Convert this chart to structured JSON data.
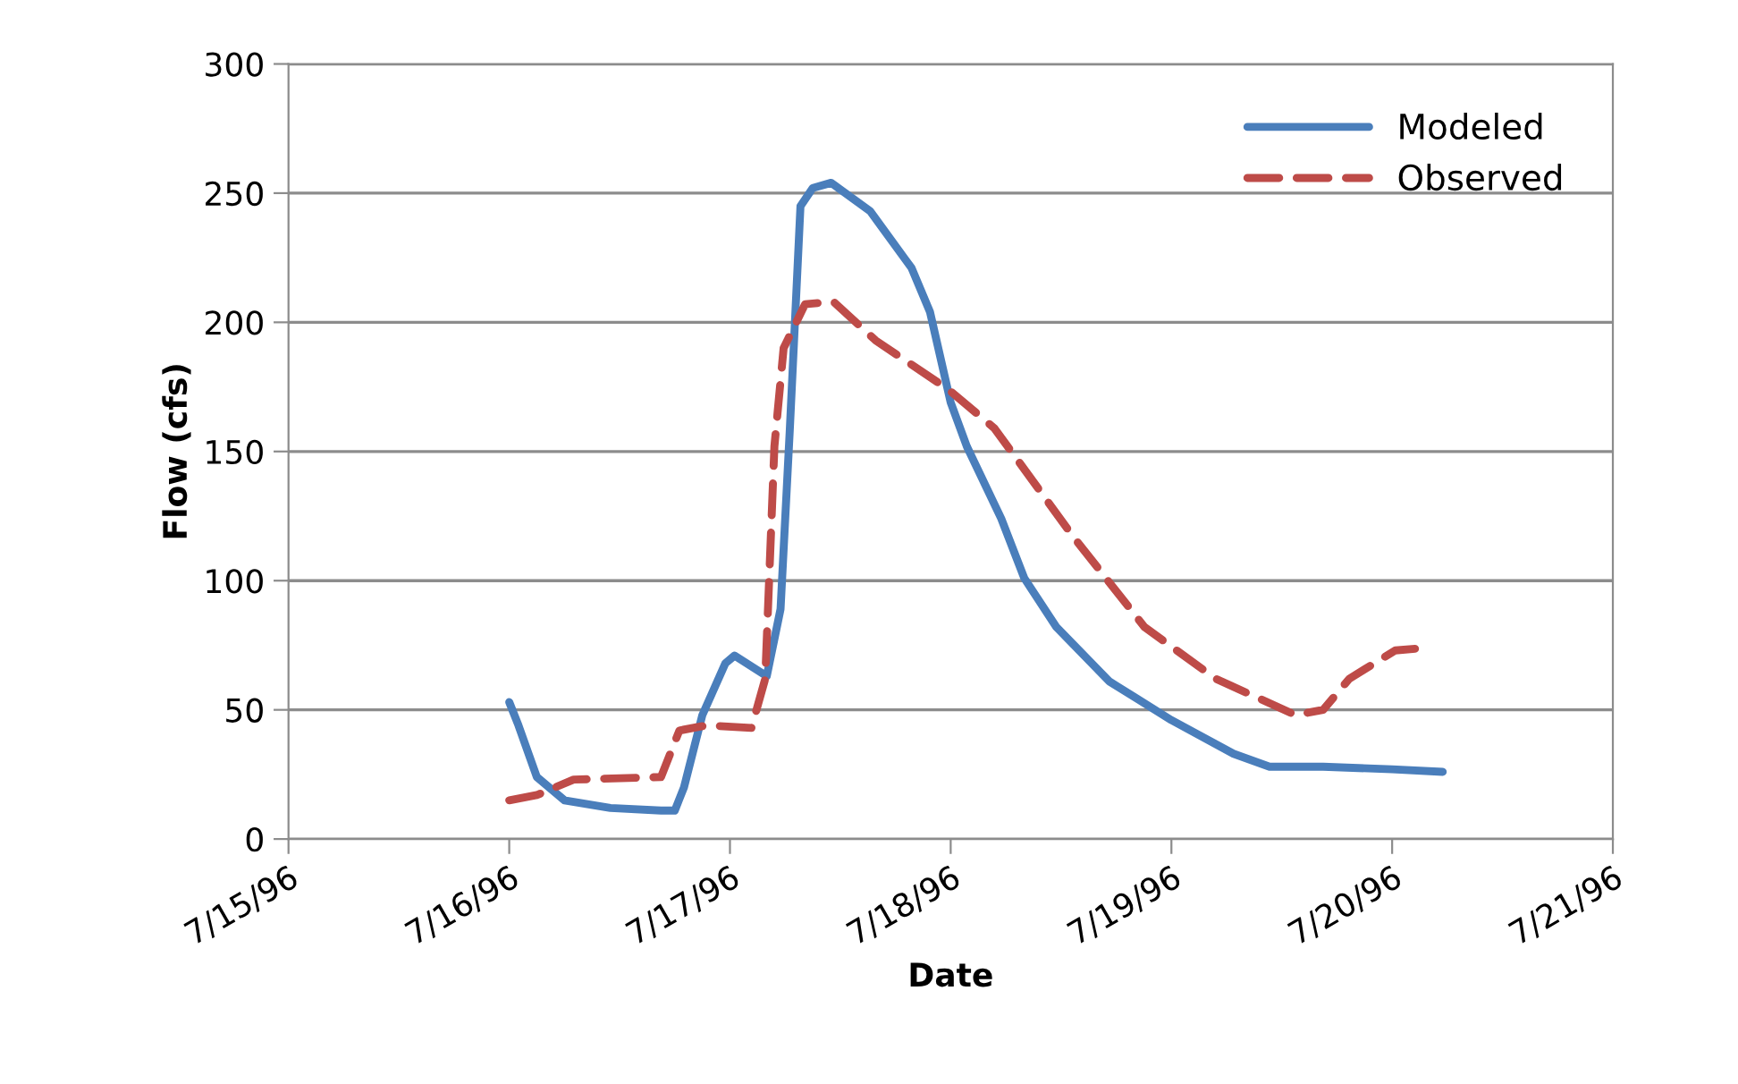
{
  "chart_data": {
    "type": "line",
    "xlabel": "Date",
    "ylabel": "Flow (cfs)",
    "series": [
      {
        "name": "Modeled",
        "color": "#4a7ebb",
        "line_style": "solid",
        "x": [
          "1996-07-16T00:00",
          "1996-07-16T01:00",
          "1996-07-16T03:00",
          "1996-07-16T06:00",
          "1996-07-16T11:00",
          "1996-07-16T16:30",
          "1996-07-16T18:00",
          "1996-07-16T19:00",
          "1996-07-16T21:00",
          "1996-07-16T23:30",
          "1996-07-17T00:30",
          "1996-07-17T04:00",
          "1996-07-17T05:30",
          "1996-07-17T06:30",
          "1996-07-17T07:40",
          "1996-07-17T09:00",
          "1996-07-17T11:00",
          "1996-07-17T15:15",
          "1996-07-17T19:45",
          "1996-07-17T21:45",
          "1996-07-18T00:00",
          "1996-07-18T01:45",
          "1996-07-18T05:30",
          "1996-07-18T08:00",
          "1996-07-18T11:30",
          "1996-07-18T17:15",
          "1996-07-19T00:00",
          "1996-07-19T06:45",
          "1996-07-19T10:40",
          "1996-07-19T16:30",
          "1996-07-20T00:00",
          "1996-07-20T05:30"
        ],
        "values": [
          53,
          44,
          24,
          15,
          12,
          11,
          11,
          20,
          48,
          68,
          71,
          63,
          89,
          158,
          245,
          252,
          254,
          243,
          221,
          204,
          169,
          152,
          124,
          101,
          82,
          61,
          46,
          33,
          28,
          28,
          27,
          26
        ]
      },
      {
        "name": "Observed",
        "color": "#be4b48",
        "line_style": "dashed",
        "x": [
          "1996-07-16T00:00",
          "1996-07-16T03:00",
          "1996-07-16T07:00",
          "1996-07-16T16:30",
          "1996-07-16T18:30",
          "1996-07-16T21:30",
          "1996-07-17T02:20",
          "1996-07-17T03:50",
          "1996-07-17T04:50",
          "1996-07-17T05:50",
          "1996-07-17T08:10",
          "1996-07-17T11:15",
          "1996-07-17T15:50",
          "1996-07-17T23:45",
          "1996-07-18T04:45",
          "1996-07-18T13:20",
          "1996-07-18T21:05",
          "1996-07-19T04:50",
          "1996-07-19T13:30",
          "1996-07-19T16:30",
          "1996-07-19T19:20",
          "1996-07-20T00:20",
          "1996-07-20T03:45"
        ],
        "values": [
          15,
          17,
          23,
          24,
          42,
          44,
          43,
          62,
          152,
          190,
          207,
          208,
          193,
          174,
          159,
          117,
          82,
          62,
          48,
          50,
          62,
          73,
          74
        ]
      }
    ],
    "xlim": [
      "1996-07-15",
      "1996-07-21"
    ],
    "xticks": [
      {
        "value": "1996-07-15",
        "label": "7/15/96"
      },
      {
        "value": "1996-07-16",
        "label": "7/16/96"
      },
      {
        "value": "1996-07-17",
        "label": "7/17/96"
      },
      {
        "value": "1996-07-18",
        "label": "7/18/96"
      },
      {
        "value": "1996-07-19",
        "label": "7/19/96"
      },
      {
        "value": "1996-07-20",
        "label": "7/20/96"
      },
      {
        "value": "1996-07-21",
        "label": "7/21/96"
      }
    ],
    "ylim": [
      0,
      300
    ],
    "yticks": [
      0,
      50,
      100,
      150,
      200,
      250,
      300
    ],
    "grid": "y",
    "legend": "top right",
    "marker": "none"
  }
}
